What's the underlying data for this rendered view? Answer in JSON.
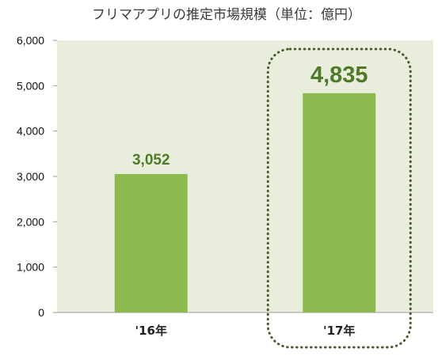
{
  "chart_data": {
    "type": "bar",
    "title": "フリマアプリの推定市場規模（単位：億円）",
    "categories": [
      "'16年",
      "'17年"
    ],
    "values": [
      3052,
      4835
    ],
    "value_labels": [
      "3,052",
      "4,835"
    ],
    "ylim": [
      0,
      6000
    ],
    "yticks": [
      0,
      1000,
      2000,
      3000,
      4000,
      5000,
      6000
    ],
    "ytick_labels": [
      "0",
      "1,000",
      "2,000",
      "3,000",
      "4,000",
      "5,000",
      "6,000"
    ],
    "xlabel": "",
    "ylabel": "",
    "grid": false,
    "highlight_category": "'17年",
    "colors": {
      "bar": "#8cba4e",
      "plot_background": "#e9eedc",
      "label": "#4f7a2a",
      "highlight_outline": "#4a5a2a"
    }
  }
}
